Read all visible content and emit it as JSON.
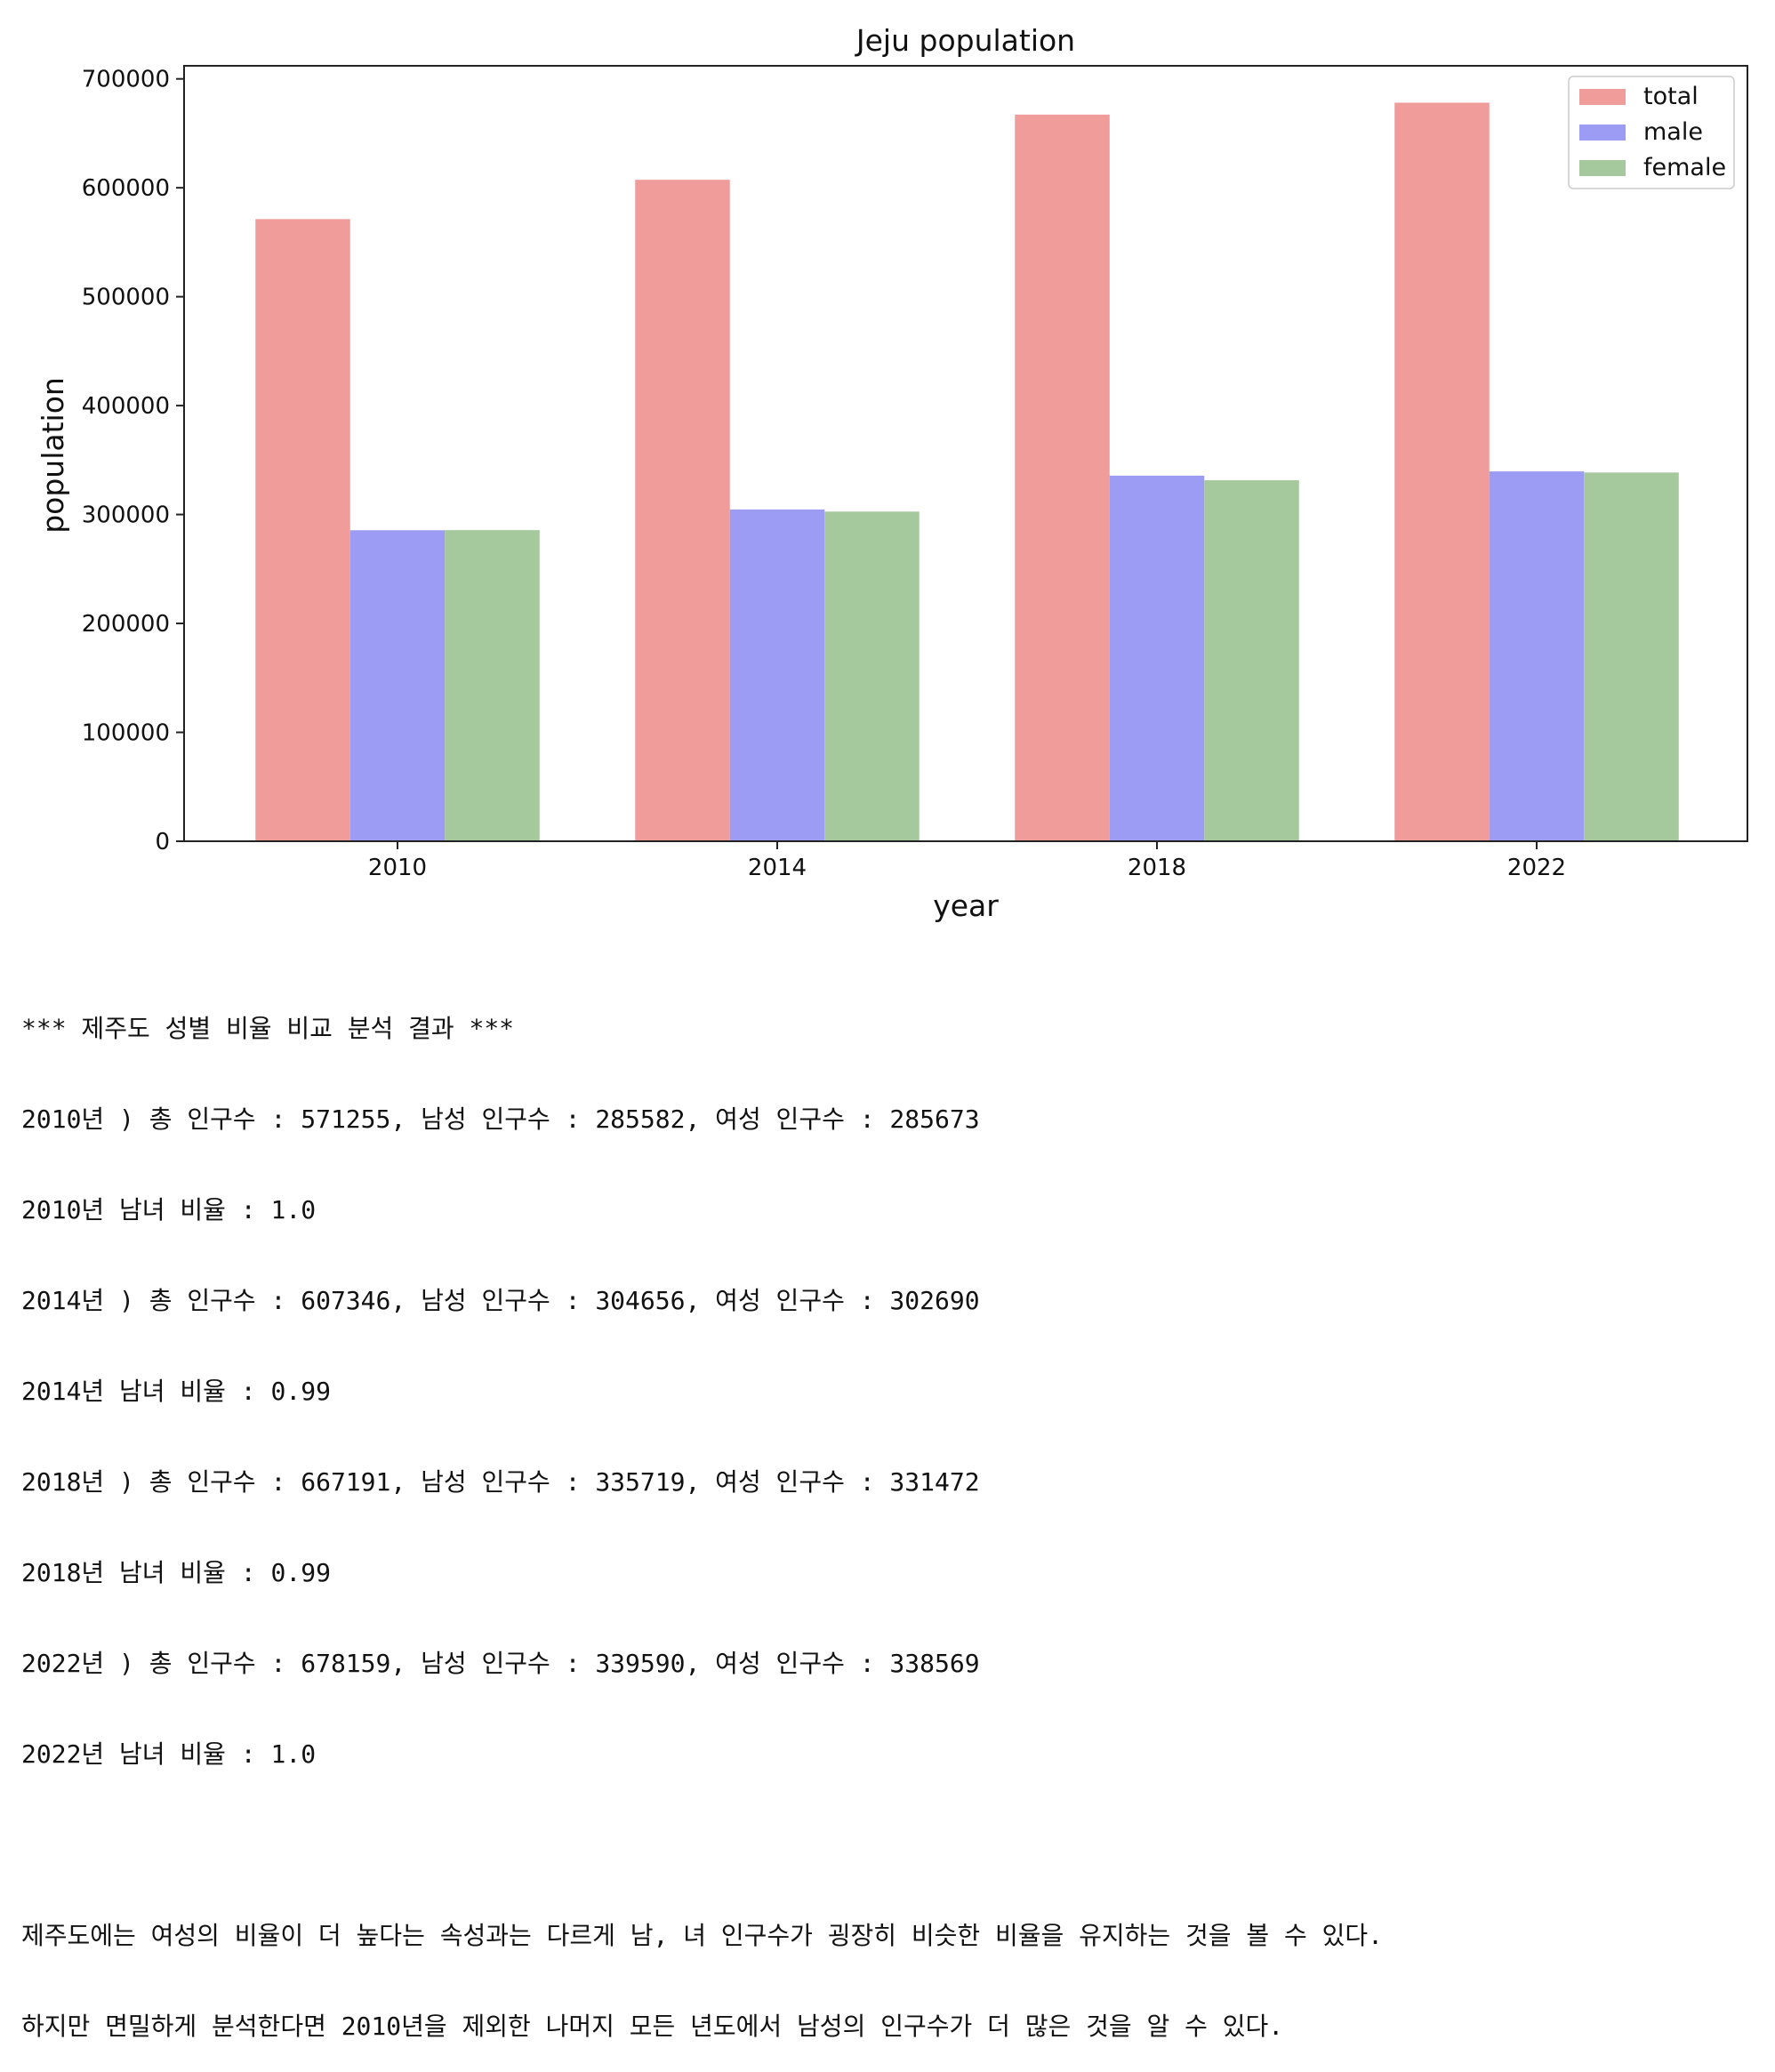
{
  "chart_data": {
    "type": "bar",
    "title": "Jeju population",
    "xlabel": "year",
    "ylabel": "population",
    "categories": [
      "2010",
      "2014",
      "2018",
      "2022"
    ],
    "series": [
      {
        "name": "total",
        "values": [
          571255,
          607346,
          667191,
          678159
        ],
        "color": "#f09c9a"
      },
      {
        "name": "male",
        "values": [
          285582,
          304656,
          335719,
          339590
        ],
        "color": "#9c9cf5"
      },
      {
        "name": "female",
        "values": [
          285673,
          302690,
          331472,
          338569
        ],
        "color": "#a5c99c"
      }
    ],
    "ylim": [
      0,
      712000
    ],
    "yticks": [
      0,
      100000,
      200000,
      300000,
      400000,
      500000,
      600000,
      700000
    ],
    "legend_position": "top-right",
    "grid": false
  },
  "output": {
    "header": "*** 제주도 성별 비율 비교 분석 결과 ***",
    "lines": [
      "2010년 ) 총 인구수 : 571255, 남성 인구수 : 285582, 여성 인구수 : 285673",
      "2010년 남녀 비율 : 1.0",
      "2014년 ) 총 인구수 : 607346, 남성 인구수 : 304656, 여성 인구수 : 302690",
      "2014년 남녀 비율 : 0.99",
      "2018년 ) 총 인구수 : 667191, 남성 인구수 : 335719, 여성 인구수 : 331472",
      "2018년 남녀 비율 : 0.99",
      "2022년 ) 총 인구수 : 678159, 남성 인구수 : 339590, 여성 인구수 : 338569",
      "2022년 남녀 비율 : 1.0"
    ],
    "conclusion": [
      "제주도에는 여성의 비율이 더 높다는 속성과는 다르게 남, 녀 인구수가 굉장히 비슷한 비율을 유지하는 것을 볼 수 있다.",
      "하지만 면밀하게 분석한다면 2010년을 제외한 나머지 모든 년도에서 남성의 인구수가 더 많은 것을 알 수 있다."
    ]
  }
}
